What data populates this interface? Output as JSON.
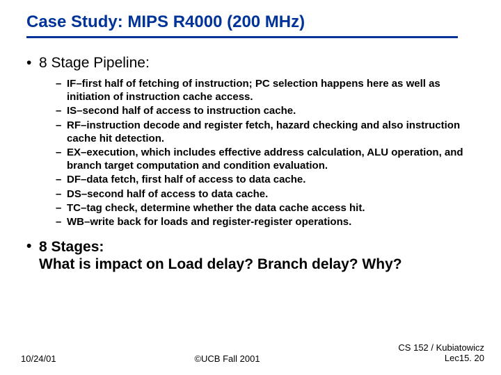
{
  "title": "Case Study: MIPS R4000 (200 MHz)",
  "section1": {
    "heading": "8 Stage Pipeline:",
    "items": [
      "IF–first half of fetching of instruction; PC selection happens here as well as initiation of instruction cache access.",
      "IS–second half of access to instruction cache.",
      "RF–instruction decode and register fetch, hazard checking and also instruction cache hit detection.",
      "EX–execution, which includes effective address calculation, ALU operation, and branch target computation and condition evaluation.",
      "DF–data fetch, first half of access to data cache.",
      "DS–second half of access to data cache.",
      "TC–tag check, determine whether the data cache access hit.",
      "WB–write back for loads and register-register operations."
    ]
  },
  "section2_line1": "8 Stages:",
  "section2_line2": "What is impact on Load delay? Branch delay? Why?",
  "footer": {
    "left": "10/24/01",
    "center": "©UCB Fall 2001",
    "right_line1": "CS 152 / Kubiatowicz",
    "right_line2": "Lec15. 20"
  }
}
